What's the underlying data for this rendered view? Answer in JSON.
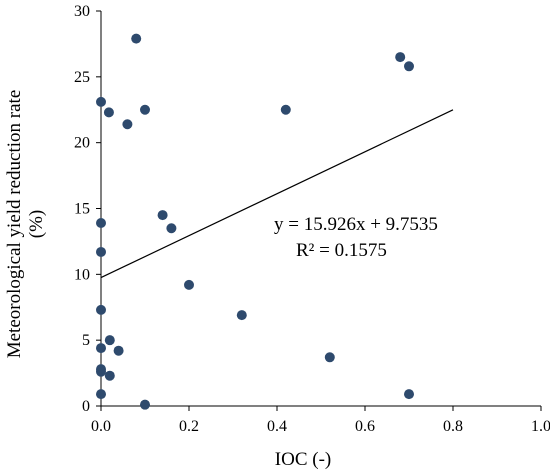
{
  "chart_data": {
    "type": "scatter",
    "title": "",
    "xlabel": "IOC (-)",
    "ylabel": "Meteorological yield reduction rate (%)",
    "xlim": [
      0,
      1.0
    ],
    "ylim": [
      0,
      30
    ],
    "xticks": [
      "0.0",
      "0.2",
      "0.4",
      "0.6",
      "0.8",
      "1.0"
    ],
    "yticks": [
      "0",
      "5",
      "10",
      "15",
      "20",
      "25",
      "30"
    ],
    "grid": false,
    "marker_color": "#2e4a6d",
    "points": [
      {
        "x": 0.0,
        "y": 23.1
      },
      {
        "x": 0.0,
        "y": 13.9
      },
      {
        "x": 0.0,
        "y": 11.7
      },
      {
        "x": 0.0,
        "y": 7.3
      },
      {
        "x": 0.0,
        "y": 4.4
      },
      {
        "x": 0.0,
        "y": 2.8
      },
      {
        "x": 0.0,
        "y": 2.6
      },
      {
        "x": 0.0,
        "y": 0.9
      },
      {
        "x": 0.018,
        "y": 22.3
      },
      {
        "x": 0.02,
        "y": 5.0
      },
      {
        "x": 0.02,
        "y": 2.3
      },
      {
        "x": 0.04,
        "y": 4.2
      },
      {
        "x": 0.06,
        "y": 21.4
      },
      {
        "x": 0.08,
        "y": 27.9
      },
      {
        "x": 0.1,
        "y": 22.5
      },
      {
        "x": 0.1,
        "y": 0.1
      },
      {
        "x": 0.14,
        "y": 14.5
      },
      {
        "x": 0.16,
        "y": 13.5
      },
      {
        "x": 0.2,
        "y": 9.2
      },
      {
        "x": 0.32,
        "y": 6.9
      },
      {
        "x": 0.42,
        "y": 22.5
      },
      {
        "x": 0.52,
        "y": 3.7
      },
      {
        "x": 0.68,
        "y": 26.5
      },
      {
        "x": 0.7,
        "y": 25.8
      },
      {
        "x": 0.7,
        "y": 0.9
      }
    ],
    "trendline": {
      "slope": 15.926,
      "intercept": 9.7535,
      "x_range": [
        0,
        0.8
      ],
      "equation": "y = 15.926x + 9.7535",
      "r_squared": "R² = 0.1575"
    }
  }
}
